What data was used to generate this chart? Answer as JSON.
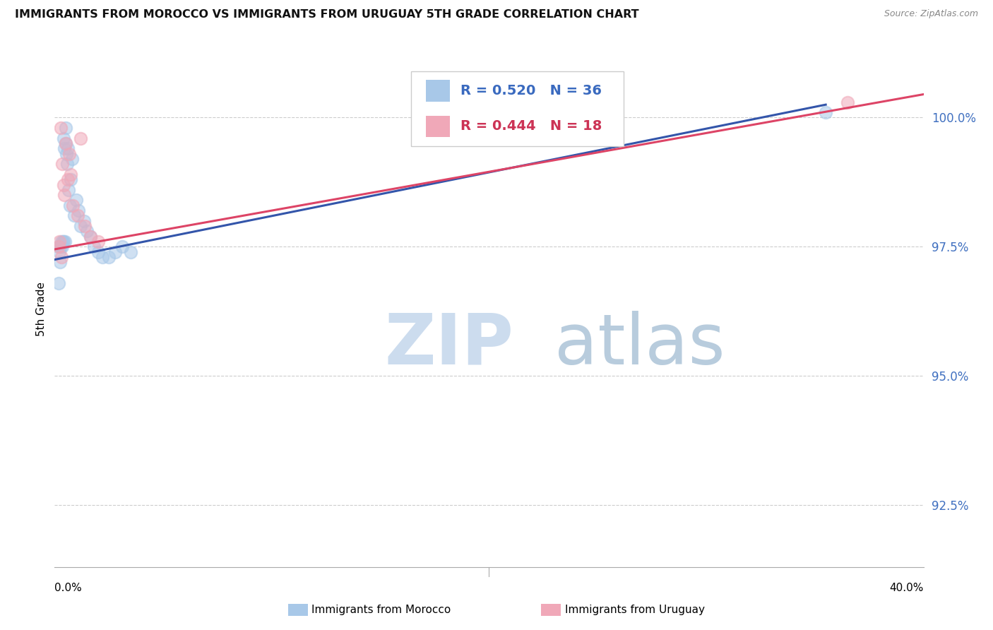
{
  "title": "IMMIGRANTS FROM MOROCCO VS IMMIGRANTS FROM URUGUAY 5TH GRADE CORRELATION CHART",
  "source": "Source: ZipAtlas.com",
  "ylabel": "5th Grade",
  "yticks": [
    92.5,
    95.0,
    97.5,
    100.0
  ],
  "ytick_labels": [
    "92.5%",
    "95.0%",
    "97.5%",
    "100.0%"
  ],
  "xlim": [
    0.0,
    40.0
  ],
  "ylim": [
    91.3,
    101.3
  ],
  "blue_R": 0.52,
  "blue_N": 36,
  "pink_R": 0.444,
  "pink_N": 18,
  "blue_color": "#a8c8e8",
  "pink_color": "#f0a8b8",
  "blue_line_color": "#3355aa",
  "pink_line_color": "#dd4466",
  "legend_blue_text_color": "#3a6abf",
  "legend_pink_text_color": "#cc3355",
  "blue_scatter_x": [
    0.18,
    0.22,
    0.28,
    0.3,
    0.35,
    0.38,
    0.4,
    0.42,
    0.45,
    0.48,
    0.5,
    0.52,
    0.55,
    0.58,
    0.6,
    0.65,
    0.7,
    0.75,
    0.8,
    0.9,
    1.0,
    1.1,
    1.2,
    1.35,
    1.5,
    1.65,
    1.8,
    2.0,
    2.2,
    2.5,
    2.8,
    3.1,
    3.5,
    0.2,
    0.25,
    35.5
  ],
  "blue_scatter_y": [
    97.5,
    97.4,
    97.5,
    97.6,
    97.5,
    97.6,
    99.6,
    97.6,
    99.4,
    97.6,
    99.8,
    99.5,
    99.3,
    99.1,
    99.4,
    98.6,
    98.3,
    98.8,
    99.2,
    98.1,
    98.4,
    98.2,
    97.9,
    98.0,
    97.8,
    97.7,
    97.5,
    97.4,
    97.3,
    97.3,
    97.4,
    97.5,
    97.4,
    96.8,
    97.2,
    100.1
  ],
  "pink_scatter_x": [
    0.18,
    0.22,
    0.28,
    0.35,
    0.4,
    0.45,
    0.52,
    0.6,
    0.68,
    0.75,
    0.85,
    1.05,
    1.2,
    1.4,
    1.65,
    2.0,
    0.32,
    36.5
  ],
  "pink_scatter_y": [
    97.5,
    97.6,
    99.8,
    99.1,
    98.7,
    98.5,
    99.5,
    98.8,
    99.3,
    98.9,
    98.3,
    98.1,
    99.6,
    97.9,
    97.7,
    97.6,
    97.3,
    100.3
  ],
  "blue_line_x": [
    0.0,
    35.5
  ],
  "blue_line_y": [
    97.25,
    100.25
  ],
  "pink_line_x": [
    0.0,
    40.0
  ],
  "pink_line_y": [
    97.45,
    100.45
  ],
  "legend_label_blue": "Immigrants from Morocco",
  "legend_label_pink": "Immigrants from Uruguay",
  "background_color": "#ffffff",
  "grid_color": "#cccccc",
  "watermark_zip_color": "#ccdcee",
  "watermark_atlas_color": "#b8ccdd"
}
